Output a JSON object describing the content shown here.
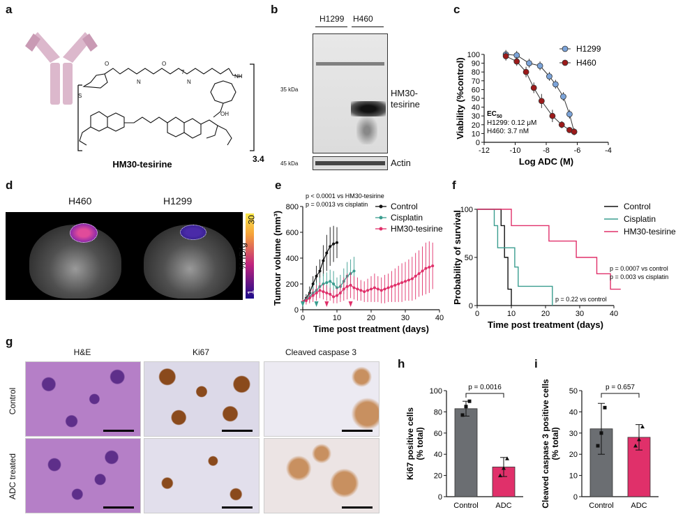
{
  "panel_labels": [
    "a",
    "b",
    "c",
    "d",
    "e",
    "f",
    "g",
    "h",
    "i"
  ],
  "panel_a": {
    "compound_name": "HM30-tesirine",
    "dar": "3.4",
    "repeat_index": "7"
  },
  "panel_b": {
    "lanes": [
      "H1299",
      "H460"
    ],
    "marker_35": "35 kDa",
    "marker_45": "45 kDa",
    "band_label_line1": "HM30-",
    "band_label_line2": "tesirine",
    "actin_label": "Actin"
  },
  "panel_d": {
    "titles": [
      "H460",
      "H1299"
    ],
    "colorbar_max": "30",
    "colorbar_min": "1",
    "colorbar_unit": "% ID/g",
    "colors": {
      "low": "#1a0a8a",
      "mid": "#c0237e",
      "high": "#f9e84a"
    }
  },
  "panel_g": {
    "column_titles": [
      "H&E",
      "Ki67",
      "Cleaved caspase 3"
    ],
    "row_titles": [
      "Control",
      "ADC treated"
    ],
    "colors": {
      "he": "#b57fc7",
      "ki67_bg": "#dcd9e8",
      "ki67_pos": "#8a4a1c",
      "casp_bg": "#eceaf2",
      "casp_pos": "#c89060"
    }
  },
  "chart_data": [
    {
      "id": "c",
      "type": "scatter",
      "xlabel": "Log ADC (M)",
      "ylabel": "Viability (%control)",
      "xlim": [
        -12,
        -4
      ],
      "ylim": [
        0,
        100
      ],
      "xticks": [
        -12,
        -10,
        -8,
        -6,
        -4
      ],
      "yticks": [
        0,
        10,
        20,
        30,
        40,
        50,
        60,
        70,
        80,
        90,
        100
      ],
      "legend": "top-right",
      "annotation": {
        "heading": "EC",
        "heading_sub": "50",
        "lines": [
          "H1299: 0.12 μM",
          "H460: 3.7 nM"
        ]
      },
      "series": [
        {
          "name": "H1299",
          "color": "#7ba3d8",
          "x": [
            -10.6,
            -9.9,
            -9.1,
            -8.4,
            -7.8,
            -7.4,
            -6.9,
            -6.5,
            -6.2
          ],
          "y": [
            100,
            99,
            90,
            87,
            75,
            66,
            52,
            32,
            12
          ],
          "err": [
            5,
            5,
            5,
            5,
            5,
            5,
            5,
            5,
            4
          ]
        },
        {
          "name": "H460",
          "color": "#9c1a1a",
          "x": [
            -10.6,
            -9.9,
            -9.3,
            -8.8,
            -8.3,
            -7.6,
            -7.0,
            -6.5,
            -6.2
          ],
          "y": [
            98,
            92,
            80,
            62,
            47,
            30,
            20,
            14,
            12
          ],
          "err": [
            5,
            5,
            6,
            6,
            8,
            7,
            4,
            3,
            3
          ]
        }
      ]
    },
    {
      "id": "e",
      "type": "line",
      "xlabel": "Time post treatment (days)",
      "ylabel": "Tumour volume (mm³)",
      "xlim": [
        0,
        40
      ],
      "ylim": [
        0,
        800
      ],
      "xticks": [
        0,
        10,
        20,
        30,
        40
      ],
      "yticks": [
        0,
        200,
        400,
        600,
        800
      ],
      "legend": "top-right",
      "annotations": [
        "p < 0.0001 vs HM30-tesirine",
        "p = 0.0013 vs cisplatin"
      ],
      "arrow_days": [
        {
          "day": 0,
          "color": "#3a9d8f"
        },
        {
          "day": 4,
          "color": "#3a9d8f"
        },
        {
          "day": 7,
          "color": "#e0306a"
        },
        {
          "day": 14,
          "color": "#e0306a"
        }
      ],
      "series": [
        {
          "name": "Control",
          "color": "#111111",
          "x": [
            0,
            1,
            2,
            3,
            4,
            5,
            6,
            7,
            8,
            9,
            10
          ],
          "y": [
            60,
            90,
            130,
            200,
            260,
            300,
            380,
            440,
            490,
            510,
            520
          ],
          "err": [
            20,
            30,
            50,
            60,
            80,
            90,
            120,
            140,
            150,
            140,
            120
          ]
        },
        {
          "name": "Cisplatin",
          "color": "#3a9d8f",
          "x": [
            0,
            1,
            2,
            3,
            4,
            5,
            6,
            7,
            8,
            9,
            10,
            11,
            12,
            13,
            14,
            15
          ],
          "y": [
            60,
            80,
            100,
            130,
            150,
            180,
            200,
            210,
            220,
            200,
            170,
            180,
            220,
            260,
            280,
            300
          ],
          "err": [
            20,
            30,
            40,
            50,
            60,
            70,
            80,
            80,
            90,
            100,
            80,
            90,
            100,
            110,
            110,
            110
          ]
        },
        {
          "name": "HM30-tesirine",
          "color": "#e0306a",
          "x": [
            0,
            1,
            2,
            3,
            4,
            5,
            6,
            7,
            8,
            9,
            10,
            11,
            12,
            13,
            14,
            15,
            16,
            17,
            18,
            19,
            20,
            21,
            22,
            23,
            24,
            25,
            26,
            27,
            28,
            29,
            30,
            31,
            32,
            33,
            34,
            35,
            36,
            37,
            38
          ],
          "y": [
            60,
            70,
            90,
            110,
            130,
            150,
            140,
            130,
            120,
            100,
            110,
            130,
            160,
            180,
            190,
            170,
            160,
            150,
            140,
            150,
            160,
            170,
            160,
            150,
            160,
            170,
            180,
            190,
            200,
            210,
            220,
            230,
            240,
            260,
            280,
            300,
            320,
            330,
            340
          ],
          "err": [
            20,
            30,
            40,
            50,
            60,
            60,
            60,
            60,
            50,
            50,
            60,
            70,
            90,
            100,
            100,
            90,
            90,
            80,
            80,
            90,
            100,
            110,
            100,
            100,
            110,
            110,
            120,
            130,
            140,
            150,
            150,
            160,
            170,
            180,
            180,
            190,
            200,
            200,
            180
          ]
        }
      ]
    },
    {
      "id": "f",
      "type": "line",
      "xlabel": "Time post treatment (days)",
      "ylabel": "Probability of survival",
      "xlim": [
        0,
        40
      ],
      "ylim": [
        0,
        100
      ],
      "xticks": [
        0,
        10,
        20,
        30,
        40
      ],
      "yticks": [
        0,
        50,
        100
      ],
      "legend": "top-right",
      "annotations": [
        "p = 0.0007 vs control",
        "p = 0.003 vs cisplatin",
        "p = 0.22 vs control"
      ],
      "series": [
        {
          "name": "Control",
          "color": "#111111",
          "x": [
            0,
            7,
            7,
            8,
            8,
            9,
            9,
            10,
            10
          ],
          "y": [
            100,
            100,
            83,
            83,
            50,
            50,
            17,
            17,
            0
          ]
        },
        {
          "name": "Cisplatin",
          "color": "#3a9d8f",
          "x": [
            0,
            5,
            5,
            6,
            6,
            11,
            11,
            12,
            12,
            22,
            22
          ],
          "y": [
            100,
            100,
            83,
            83,
            60,
            60,
            40,
            40,
            20,
            20,
            0
          ]
        },
        {
          "name": "HM30-tesirine",
          "color": "#e0306a",
          "x": [
            0,
            10,
            10,
            21,
            21,
            29,
            29,
            35,
            35,
            39,
            39,
            42
          ],
          "y": [
            100,
            100,
            83,
            83,
            67,
            67,
            50,
            50,
            33,
            33,
            17,
            17
          ]
        }
      ]
    },
    {
      "id": "h",
      "type": "bar",
      "categories": [
        "Control",
        "ADC"
      ],
      "values": [
        83,
        28
      ],
      "err": [
        7,
        9
      ],
      "points": [
        [
          77,
          85,
          90
        ],
        [
          20,
          27,
          36
        ]
      ],
      "colors": [
        "#6b6e72",
        "#e0306a"
      ],
      "ylabel": "Ki67 positive cells (% total)",
      "ylim": [
        0,
        100
      ],
      "yticks": [
        0,
        20,
        40,
        60,
        80,
        100
      ],
      "annotation": "p = 0.0016"
    },
    {
      "id": "i",
      "type": "bar",
      "categories": [
        "Control",
        "ADC"
      ],
      "values": [
        32,
        28
      ],
      "err": [
        12,
        6
      ],
      "points": [
        [
          24,
          30,
          42
        ],
        [
          24,
          27,
          33
        ]
      ],
      "colors": [
        "#6b6e72",
        "#e0306a"
      ],
      "ylabel": "Cleaved caspase 3 positive cells (% total)",
      "ylim": [
        0,
        50
      ],
      "yticks": [
        0,
        10,
        20,
        30,
        40,
        50
      ],
      "annotation": "p = 0.657"
    }
  ]
}
